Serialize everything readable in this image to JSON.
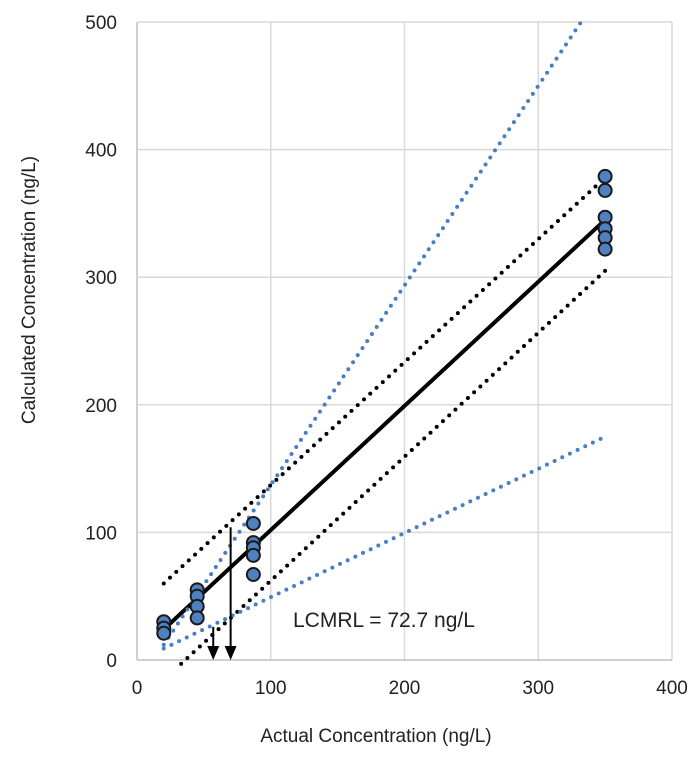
{
  "chart_data": {
    "type": "scatter",
    "title": "",
    "xlabel": "Actual Concentration (ng/L)",
    "ylabel": "Calculated Concentration (ng/L)",
    "xlim": [
      0,
      400
    ],
    "ylim": [
      0,
      500
    ],
    "xticks": [
      "0",
      "100",
      "200",
      "300",
      "400"
    ],
    "yticks": [
      "0",
      "100",
      "200",
      "300",
      "400",
      "500"
    ],
    "grid": true,
    "annotation": "LCMRL = 72.7 ng/L",
    "points": [
      {
        "x": 20,
        "y": 30
      },
      {
        "x": 20,
        "y": 25
      },
      {
        "x": 20,
        "y": 21
      },
      {
        "x": 45,
        "y": 55
      },
      {
        "x": 45,
        "y": 50
      },
      {
        "x": 45,
        "y": 42
      },
      {
        "x": 45,
        "y": 33
      },
      {
        "x": 87,
        "y": 107
      },
      {
        "x": 87,
        "y": 92
      },
      {
        "x": 87,
        "y": 88
      },
      {
        "x": 87,
        "y": 82
      },
      {
        "x": 87,
        "y": 67
      },
      {
        "x": 350,
        "y": 379
      },
      {
        "x": 350,
        "y": 368
      },
      {
        "x": 350,
        "y": 347
      },
      {
        "x": 350,
        "y": 338
      },
      {
        "x": 350,
        "y": 331
      },
      {
        "x": 350,
        "y": 322
      }
    ],
    "lines": [
      {
        "name": "regression",
        "style": "solid",
        "color": "#000000",
        "x": [
          20,
          350
        ],
        "y": [
          24,
          345
        ]
      },
      {
        "name": "prediction-upper",
        "style": "dotted",
        "color": "#000000",
        "x": [
          20,
          350
        ],
        "y": [
          60,
          378
        ]
      },
      {
        "name": "prediction-lower",
        "style": "dotted",
        "color": "#000000",
        "x": [
          33,
          350
        ],
        "y": [
          -3,
          305
        ]
      },
      {
        "name": "recovery-upper",
        "style": "dotted",
        "color": "#4a7ec4",
        "x": [
          20,
          332
        ],
        "y": [
          12,
          500
        ]
      },
      {
        "name": "recovery-lower",
        "style": "dotted",
        "color": "#4a7ec4",
        "x": [
          20,
          350
        ],
        "y": [
          9,
          175
        ]
      }
    ],
    "arrows": [
      {
        "x": 57,
        "y_from": 26,
        "y_to": 0
      },
      {
        "x": 70,
        "y_from": 104,
        "y_to": 0
      }
    ],
    "colors": {
      "point_fill": "#4f81c0",
      "grid": "#d9d9d9"
    }
  }
}
